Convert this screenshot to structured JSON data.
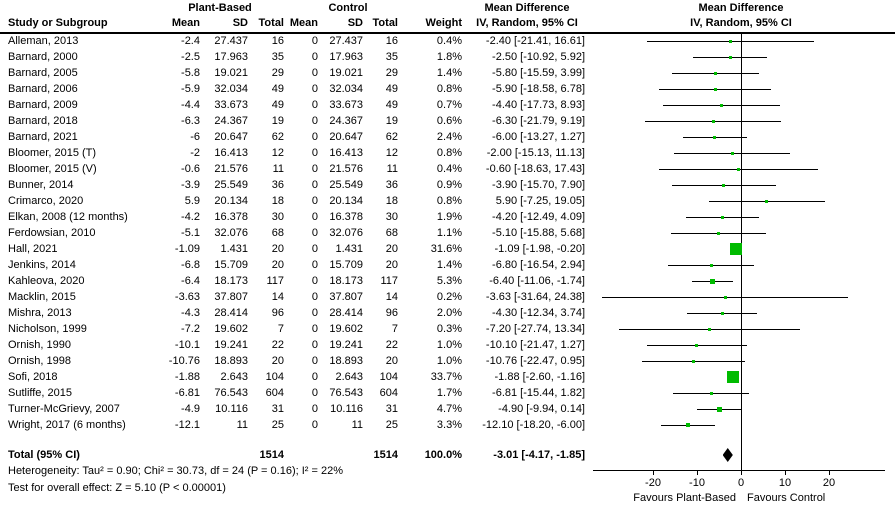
{
  "header": {
    "study_col": "Study or Subgroup",
    "group1": "Plant-Based",
    "group2": "Control",
    "mean": "Mean",
    "sd": "SD",
    "total": "Total",
    "weight": "Weight",
    "md_line1": "Mean Difference",
    "md_line2": "IV, Random, 95% CI"
  },
  "footer": {
    "heterogeneity": "Heterogeneity: Tau² = 0.90; Chi² = 30.73, df = 24 (P = 0.16); I² = 22%",
    "overall_effect": "Test for overall effect: Z = 5.10 (P < 0.00001)"
  },
  "chart_data": {
    "type": "forest",
    "title": "Mean Difference",
    "subtitle": "IV, Random, 95% CI",
    "x_ticks": [
      -20,
      -10,
      0,
      10,
      20
    ],
    "x_range": [
      -34,
      35
    ],
    "favours_left": "Favours Plant-Based",
    "favours_right": "Favours Control",
    "marker_color": "#00bb00",
    "diamond_color": "#000000",
    "studies": [
      {
        "name": "Alleman, 2013",
        "mean1": "-2.4",
        "sd1": "27.437",
        "n1": "16",
        "mean2": "0",
        "sd2": "27.437",
        "n2": "16",
        "weight": "0.4%",
        "w": 0.4,
        "md": -2.4,
        "lo": -21.41,
        "hi": 16.61,
        "label": "-2.40 [-21.41, 16.61]"
      },
      {
        "name": "Barnard, 2000",
        "mean1": "-2.5",
        "sd1": "17.963",
        "n1": "35",
        "mean2": "0",
        "sd2": "17.963",
        "n2": "35",
        "weight": "1.8%",
        "w": 1.8,
        "md": -2.5,
        "lo": -10.92,
        "hi": 5.92,
        "label": "-2.50 [-10.92, 5.92]"
      },
      {
        "name": "Barnard, 2005",
        "mean1": "-5.8",
        "sd1": "19.021",
        "n1": "29",
        "mean2": "0",
        "sd2": "19.021",
        "n2": "29",
        "weight": "1.4%",
        "w": 1.4,
        "md": -5.8,
        "lo": -15.59,
        "hi": 3.99,
        "label": "-5.80 [-15.59, 3.99]"
      },
      {
        "name": "Barnard, 2006",
        "mean1": "-5.9",
        "sd1": "32.034",
        "n1": "49",
        "mean2": "0",
        "sd2": "32.034",
        "n2": "49",
        "weight": "0.8%",
        "w": 0.8,
        "md": -5.9,
        "lo": -18.58,
        "hi": 6.78,
        "label": "-5.90 [-18.58, 6.78]"
      },
      {
        "name": "Barnard, 2009",
        "mean1": "-4.4",
        "sd1": "33.673",
        "n1": "49",
        "mean2": "0",
        "sd2": "33.673",
        "n2": "49",
        "weight": "0.7%",
        "w": 0.7,
        "md": -4.4,
        "lo": -17.73,
        "hi": 8.93,
        "label": "-4.40 [-17.73, 8.93]"
      },
      {
        "name": "Barnard, 2018",
        "mean1": "-6.3",
        "sd1": "24.367",
        "n1": "19",
        "mean2": "0",
        "sd2": "24.367",
        "n2": "19",
        "weight": "0.6%",
        "w": 0.6,
        "md": -6.3,
        "lo": -21.79,
        "hi": 9.19,
        "label": "-6.30 [-21.79, 9.19]"
      },
      {
        "name": "Barnard, 2021",
        "mean1": "-6",
        "sd1": "20.647",
        "n1": "62",
        "mean2": "0",
        "sd2": "20.647",
        "n2": "62",
        "weight": "2.4%",
        "w": 2.4,
        "md": -6.0,
        "lo": -13.27,
        "hi": 1.27,
        "label": "-6.00 [-13.27, 1.27]"
      },
      {
        "name": "Bloomer, 2015 (T)",
        "mean1": "-2",
        "sd1": "16.413",
        "n1": "12",
        "mean2": "0",
        "sd2": "16.413",
        "n2": "12",
        "weight": "0.8%",
        "w": 0.8,
        "md": -2.0,
        "lo": -15.13,
        "hi": 11.13,
        "label": "-2.00 [-15.13, 11.13]"
      },
      {
        "name": "Bloomer, 2015 (V)",
        "mean1": "-0.6",
        "sd1": "21.576",
        "n1": "11",
        "mean2": "0",
        "sd2": "21.576",
        "n2": "11",
        "weight": "0.4%",
        "w": 0.4,
        "md": -0.6,
        "lo": -18.63,
        "hi": 17.43,
        "label": "-0.60 [-18.63, 17.43]"
      },
      {
        "name": "Bunner, 2014",
        "mean1": "-3.9",
        "sd1": "25.549",
        "n1": "36",
        "mean2": "0",
        "sd2": "25.549",
        "n2": "36",
        "weight": "0.9%",
        "w": 0.9,
        "md": -3.9,
        "lo": -15.7,
        "hi": 7.9,
        "label": "-3.90 [-15.70, 7.90]"
      },
      {
        "name": "Crimarco, 2020",
        "mean1": "5.9",
        "sd1": "20.134",
        "n1": "18",
        "mean2": "0",
        "sd2": "20.134",
        "n2": "18",
        "weight": "0.8%",
        "w": 0.8,
        "md": 5.9,
        "lo": -7.25,
        "hi": 19.05,
        "label": "5.90 [-7.25, 19.05]"
      },
      {
        "name": "Elkan, 2008 (12 months)",
        "mean1": "-4.2",
        "sd1": "16.378",
        "n1": "30",
        "mean2": "0",
        "sd2": "16.378",
        "n2": "30",
        "weight": "1.9%",
        "w": 1.9,
        "md": -4.2,
        "lo": -12.49,
        "hi": 4.09,
        "label": "-4.20 [-12.49, 4.09]"
      },
      {
        "name": "Ferdowsian, 2010",
        "mean1": "-5.1",
        "sd1": "32.076",
        "n1": "68",
        "mean2": "0",
        "sd2": "32.076",
        "n2": "68",
        "weight": "1.1%",
        "w": 1.1,
        "md": -5.1,
        "lo": -15.88,
        "hi": 5.68,
        "label": "-5.10 [-15.88, 5.68]"
      },
      {
        "name": "Hall, 2021",
        "mean1": "-1.09",
        "sd1": "1.431",
        "n1": "20",
        "mean2": "0",
        "sd2": "1.431",
        "n2": "20",
        "weight": "31.6%",
        "w": 31.6,
        "md": -1.09,
        "lo": -1.98,
        "hi": -0.2,
        "label": "-1.09 [-1.98, -0.20]"
      },
      {
        "name": "Jenkins, 2014",
        "mean1": "-6.8",
        "sd1": "15.709",
        "n1": "20",
        "mean2": "0",
        "sd2": "15.709",
        "n2": "20",
        "weight": "1.4%",
        "w": 1.4,
        "md": -6.8,
        "lo": -16.54,
        "hi": 2.94,
        "label": "-6.80 [-16.54, 2.94]"
      },
      {
        "name": "Kahleova, 2020",
        "mean1": "-6.4",
        "sd1": "18.173",
        "n1": "117",
        "mean2": "0",
        "sd2": "18.173",
        "n2": "117",
        "weight": "5.3%",
        "w": 5.3,
        "md": -6.4,
        "lo": -11.06,
        "hi": -1.74,
        "label": "-6.40 [-11.06, -1.74]"
      },
      {
        "name": "Macklin, 2015",
        "mean1": "-3.63",
        "sd1": "37.807",
        "n1": "14",
        "mean2": "0",
        "sd2": "37.807",
        "n2": "14",
        "weight": "0.2%",
        "w": 0.2,
        "md": -3.63,
        "lo": -31.64,
        "hi": 24.38,
        "label": "-3.63 [-31.64, 24.38]"
      },
      {
        "name": "Mishra, 2013",
        "mean1": "-4.3",
        "sd1": "28.414",
        "n1": "96",
        "mean2": "0",
        "sd2": "28.414",
        "n2": "96",
        "weight": "2.0%",
        "w": 2.0,
        "md": -4.3,
        "lo": -12.34,
        "hi": 3.74,
        "label": "-4.30 [-12.34, 3.74]"
      },
      {
        "name": "Nicholson, 1999",
        "mean1": "-7.2",
        "sd1": "19.602",
        "n1": "7",
        "mean2": "0",
        "sd2": "19.602",
        "n2": "7",
        "weight": "0.3%",
        "w": 0.3,
        "md": -7.2,
        "lo": -27.74,
        "hi": 13.34,
        "label": "-7.20 [-27.74, 13.34]"
      },
      {
        "name": "Ornish, 1990",
        "mean1": "-10.1",
        "sd1": "19.241",
        "n1": "22",
        "mean2": "0",
        "sd2": "19.241",
        "n2": "22",
        "weight": "1.0%",
        "w": 1.0,
        "md": -10.1,
        "lo": -21.47,
        "hi": 1.27,
        "label": "-10.10 [-21.47, 1.27]"
      },
      {
        "name": "Ornish, 1998",
        "mean1": "-10.76",
        "sd1": "18.893",
        "n1": "20",
        "mean2": "0",
        "sd2": "18.893",
        "n2": "20",
        "weight": "1.0%",
        "w": 1.0,
        "md": -10.76,
        "lo": -22.47,
        "hi": 0.95,
        "label": "-10.76 [-22.47, 0.95]"
      },
      {
        "name": "Sofi, 2018",
        "mean1": "-1.88",
        "sd1": "2.643",
        "n1": "104",
        "mean2": "0",
        "sd2": "2.643",
        "n2": "104",
        "weight": "33.7%",
        "w": 33.7,
        "md": -1.88,
        "lo": -2.6,
        "hi": -1.16,
        "label": "-1.88 [-2.60, -1.16]"
      },
      {
        "name": "Sutliffe, 2015",
        "mean1": "-6.81",
        "sd1": "76.543",
        "n1": "604",
        "mean2": "0",
        "sd2": "76.543",
        "n2": "604",
        "weight": "1.7%",
        "w": 1.7,
        "md": -6.81,
        "lo": -15.44,
        "hi": 1.82,
        "label": "-6.81 [-15.44, 1.82]"
      },
      {
        "name": "Turner-McGrievy, 2007",
        "mean1": "-4.9",
        "sd1": "10.116",
        "n1": "31",
        "mean2": "0",
        "sd2": "10.116",
        "n2": "31",
        "weight": "4.7%",
        "w": 4.7,
        "md": -4.9,
        "lo": -9.94,
        "hi": 0.14,
        "label": "-4.90 [-9.94, 0.14]"
      },
      {
        "name": "Wright, 2017 (6 months)",
        "mean1": "-12.1",
        "sd1": "11",
        "n1": "25",
        "mean2": "0",
        "sd2": "11",
        "n2": "25",
        "weight": "3.3%",
        "w": 3.3,
        "md": -12.1,
        "lo": -18.2,
        "hi": -6.0,
        "label": "-12.10 [-18.20, -6.00]"
      }
    ],
    "total": {
      "label": "Total (95% CI)",
      "n1": "1514",
      "n2": "1514",
      "weight": "100.0%",
      "md": -3.01,
      "lo": -4.17,
      "hi": -1.85,
      "md_label": "-3.01 [-4.17, -1.85]"
    }
  }
}
